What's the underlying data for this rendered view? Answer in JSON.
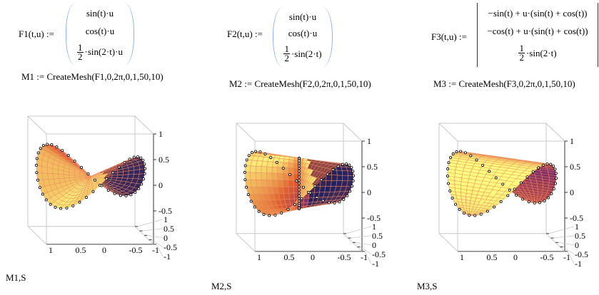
{
  "equations": [
    {
      "label": "F1(t,u) :=",
      "rows": [
        "sin(t)·u",
        "cos(t)·u"
      ],
      "frac": [
        "1",
        "2"
      ],
      "last": "·sin(2·t)·u",
      "mesh": "M1 := CreateMesh(F1,0,2π,0,1,50,10)",
      "plot_label": "M1,S"
    },
    {
      "label": "F2(t,u) :=",
      "rows": [
        "sin(t)·u",
        "cos(t)·u"
      ],
      "frac": [
        "1",
        "2"
      ],
      "last": "·sin(2·t)",
      "mesh": "M2 := CreateMesh(F2,0,2π,0,1,50,10)",
      "plot_label": "M2,S"
    },
    {
      "label": "F3(t,u) :=",
      "rows": [
        "−sin(t) + u·(sin(t) + cos(t))",
        "−cos(t) + u·(sin(t) + cos(t))"
      ],
      "frac": [
        "1",
        "2"
      ],
      "last": "·sin(2·t)",
      "mesh": "M3 := CreateMesh(F3,0,2π,0,1,50,10)",
      "plot_label": "M3,S"
    }
  ],
  "axes": {
    "z_ticks": [
      "1",
      "0.5",
      "0",
      "-0.5"
    ],
    "x_ticks": [
      "1",
      "0.5",
      "0",
      "-0.5",
      "-1"
    ],
    "y_ticks": [
      "1",
      "0.5",
      "0",
      "-0.5",
      "-1"
    ]
  },
  "colors": {
    "mesh_line": "#f08a60",
    "box": "#c8c8c8",
    "high": "#ffff80",
    "mid": "#e06030",
    "low": "#202060",
    "matrix_paren": "#8ab4e8"
  }
}
